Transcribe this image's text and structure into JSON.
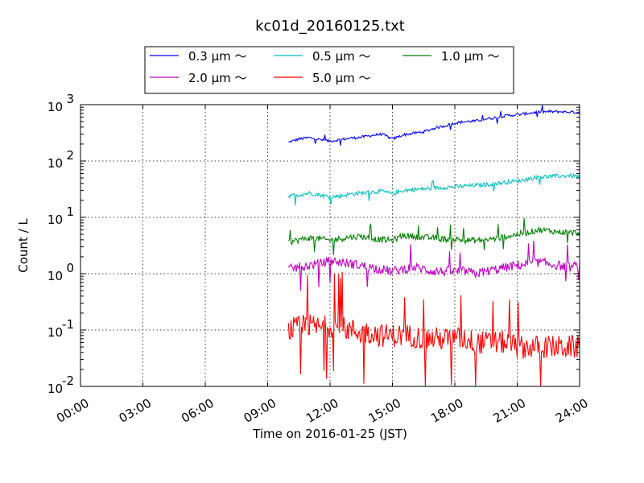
{
  "chart_data": {
    "type": "line",
    "title": "kc01d_20160125.txt",
    "xlabel": "Time on 2016-01-25 (JST)",
    "ylabel": "Count / L",
    "x_ticks": [
      "00:00",
      "03:00",
      "06:00",
      "09:00",
      "12:00",
      "15:00",
      "18:00",
      "21:00",
      "24:00"
    ],
    "xlim": [
      "00:00",
      "24:00"
    ],
    "y_scale": "log",
    "ylim": [
      0.01,
      1000
    ],
    "y_ticks": [
      {
        "base": "10",
        "exp": "-2"
      },
      {
        "base": "10",
        "exp": "-1"
      },
      {
        "base": "10",
        "exp": "0"
      },
      {
        "base": "10",
        "exp": "1"
      },
      {
        "base": "10",
        "exp": "2"
      },
      {
        "base": "10",
        "exp": "3"
      }
    ],
    "grid": true,
    "legend_position": "top-center",
    "series": [
      {
        "name": "0.3 μm ～",
        "color": "#0000ff",
        "x": [
          "10:00",
          "10:30",
          "11:00",
          "11:30",
          "12:00",
          "12:30",
          "13:00",
          "13:30",
          "14:00",
          "14:30",
          "15:00",
          "15:30",
          "16:00",
          "16:30",
          "17:00",
          "17:30",
          "18:00",
          "18:30",
          "19:00",
          "19:30",
          "20:00",
          "20:30",
          "21:00",
          "21:30",
          "22:00",
          "22:30",
          "23:00",
          "23:30",
          "24:00"
        ],
        "values": [
          215,
          245,
          260,
          240,
          225,
          240,
          255,
          265,
          285,
          300,
          245,
          290,
          310,
          330,
          380,
          420,
          470,
          500,
          510,
          560,
          590,
          640,
          660,
          700,
          740,
          750,
          750,
          740,
          730
        ],
        "noise": 0.08,
        "spike_prob": 0.02
      },
      {
        "name": "0.5 μm ～",
        "color": "#00bfbf",
        "x": [
          "10:00",
          "10:30",
          "11:00",
          "11:30",
          "12:00",
          "12:30",
          "13:00",
          "13:30",
          "14:00",
          "14:30",
          "15:00",
          "15:30",
          "16:00",
          "16:30",
          "17:00",
          "17:30",
          "18:00",
          "18:30",
          "19:00",
          "19:30",
          "20:00",
          "20:30",
          "21:00",
          "21:30",
          "22:00",
          "22:30",
          "23:00",
          "23:30",
          "24:00"
        ],
        "values": [
          24,
          25,
          27,
          25,
          23,
          24,
          26,
          27,
          28,
          29,
          26,
          30,
          31,
          32,
          33,
          34,
          35,
          36,
          37,
          38,
          40,
          42,
          44,
          48,
          52,
          53,
          54,
          55,
          53
        ],
        "noise": 0.12,
        "spike_prob": 0.03
      },
      {
        "name": "1.0 μm ～",
        "color": "#008000",
        "x": [
          "10:00",
          "10:30",
          "11:00",
          "11:30",
          "12:00",
          "12:30",
          "13:00",
          "13:30",
          "14:00",
          "14:30",
          "15:00",
          "15:30",
          "16:00",
          "16:30",
          "17:00",
          "17:30",
          "18:00",
          "18:30",
          "19:00",
          "19:30",
          "20:00",
          "20:30",
          "21:00",
          "21:30",
          "22:00",
          "22:30",
          "23:00",
          "23:30",
          "24:00"
        ],
        "values": [
          3.6,
          4.0,
          4.3,
          4.2,
          3.9,
          4.2,
          4.5,
          4.6,
          4.2,
          4.0,
          3.9,
          4.8,
          4.6,
          4.4,
          4.3,
          4.1,
          4.1,
          3.9,
          3.9,
          4.0,
          4.2,
          4.6,
          5.0,
          5.4,
          6.0,
          5.8,
          5.5,
          5.4,
          5.3
        ],
        "noise": 0.18,
        "spike_prob": 0.06
      },
      {
        "name": "2.0 μm ～",
        "color": "#bf00bf",
        "x": [
          "10:00",
          "10:30",
          "11:00",
          "11:30",
          "12:00",
          "12:30",
          "13:00",
          "13:30",
          "14:00",
          "14:30",
          "15:00",
          "15:30",
          "16:00",
          "16:30",
          "17:00",
          "17:30",
          "18:00",
          "18:30",
          "19:00",
          "19:30",
          "20:00",
          "20:30",
          "21:00",
          "21:30",
          "22:00",
          "22:30",
          "23:00",
          "23:30",
          "24:00"
        ],
        "values": [
          1.2,
          1.3,
          1.4,
          1.5,
          1.7,
          1.6,
          1.5,
          1.4,
          1.3,
          1.2,
          1.1,
          1.2,
          1.3,
          1.2,
          1.1,
          1.1,
          1.1,
          1.1,
          1.0,
          1.1,
          1.2,
          1.3,
          1.4,
          1.5,
          1.6,
          1.5,
          1.4,
          1.3,
          1.4
        ],
        "noise": 0.28,
        "spike_prob": 0.05
      },
      {
        "name": "5.0 μm ～",
        "color": "#ff0000",
        "x": [
          "10:00",
          "10:30",
          "11:00",
          "11:30",
          "12:00",
          "12:30",
          "13:00",
          "13:30",
          "14:00",
          "14:30",
          "15:00",
          "15:30",
          "16:00",
          "16:30",
          "17:00",
          "17:30",
          "18:00",
          "18:30",
          "19:00",
          "19:30",
          "20:00",
          "20:30",
          "21:00",
          "21:30",
          "22:00",
          "22:30",
          "23:00",
          "23:30",
          "24:00"
        ],
        "values": [
          0.1,
          0.11,
          0.12,
          0.11,
          0.12,
          0.11,
          0.1,
          0.09,
          0.09,
          0.08,
          0.08,
          0.08,
          0.08,
          0.07,
          0.07,
          0.07,
          0.07,
          0.07,
          0.06,
          0.06,
          0.06,
          0.06,
          0.05,
          0.05,
          0.05,
          0.05,
          0.05,
          0.05,
          0.05
        ],
        "noise": 0.7,
        "spike_prob": 0.08
      }
    ]
  }
}
